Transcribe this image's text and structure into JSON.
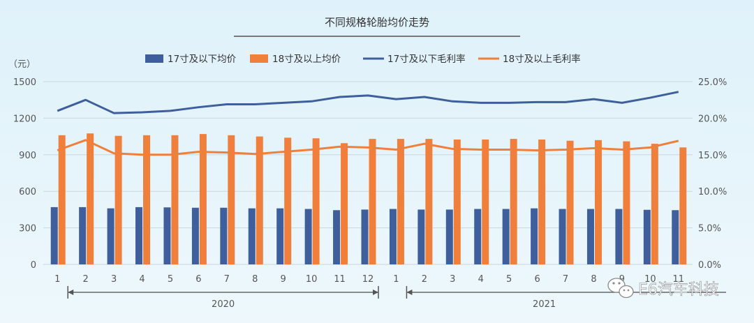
{
  "chart_data": {
    "type": "bar",
    "title": "不同规格轮胎均价走势",
    "y_left_unit": "（元）",
    "y_left_ticks": [
      "0",
      "300",
      "600",
      "900",
      "1200",
      "1500"
    ],
    "y_left_lim": [
      0,
      1500
    ],
    "y_right_ticks": [
      "0.0%",
      "5.0%",
      "10.0%",
      "15.0%",
      "20.0%",
      "25.0%"
    ],
    "y_right_lim": [
      0,
      25
    ],
    "categories": [
      "1",
      "2",
      "3",
      "4",
      "5",
      "6",
      "7",
      "8",
      "9",
      "10",
      "11",
      "12",
      "1",
      "2",
      "3",
      "4",
      "5",
      "6",
      "7",
      "8",
      "9",
      "10",
      "11"
    ],
    "year_groups": [
      {
        "label": "2020",
        "from": 0,
        "to": 11
      },
      {
        "label": "2021",
        "from": 12,
        "to": 22
      }
    ],
    "series": [
      {
        "name": "17寸及以下均价",
        "type": "bar",
        "axis": "left",
        "color": "#3f5f9c",
        "values": [
          470,
          470,
          460,
          470,
          468,
          465,
          465,
          460,
          460,
          455,
          445,
          450,
          455,
          450,
          450,
          455,
          455,
          460,
          455,
          455,
          455,
          448,
          445
        ]
      },
      {
        "name": "18寸及以上均价",
        "type": "bar",
        "axis": "left",
        "color": "#f07f3c",
        "values": [
          1060,
          1075,
          1055,
          1060,
          1060,
          1070,
          1060,
          1050,
          1040,
          1035,
          995,
          1030,
          1030,
          1030,
          1025,
          1025,
          1030,
          1025,
          1015,
          1020,
          1010,
          990,
          960
        ]
      },
      {
        "name": "17寸及以下毛利率",
        "type": "line",
        "axis": "right",
        "color": "#3f5f9c",
        "values": [
          21.0,
          22.5,
          20.7,
          20.8,
          21.0,
          21.5,
          21.9,
          21.9,
          22.1,
          22.3,
          22.9,
          23.1,
          22.6,
          22.9,
          22.3,
          22.1,
          22.1,
          22.2,
          22.2,
          22.6,
          22.1,
          22.8,
          23.6
        ]
      },
      {
        "name": "18寸及以上毛利率",
        "type": "line",
        "axis": "right",
        "color": "#f07f3c",
        "values": [
          15.6,
          17.0,
          15.2,
          15.0,
          15.0,
          15.4,
          15.3,
          15.1,
          15.4,
          15.7,
          16.1,
          16.0,
          15.7,
          16.5,
          15.8,
          15.7,
          15.7,
          15.6,
          15.7,
          15.9,
          15.7,
          16.0,
          16.9
        ]
      }
    ],
    "legend_position": "top",
    "grid": true
  },
  "watermark": {
    "text": "E6汽车科技",
    "icon": "wechat-icon"
  }
}
